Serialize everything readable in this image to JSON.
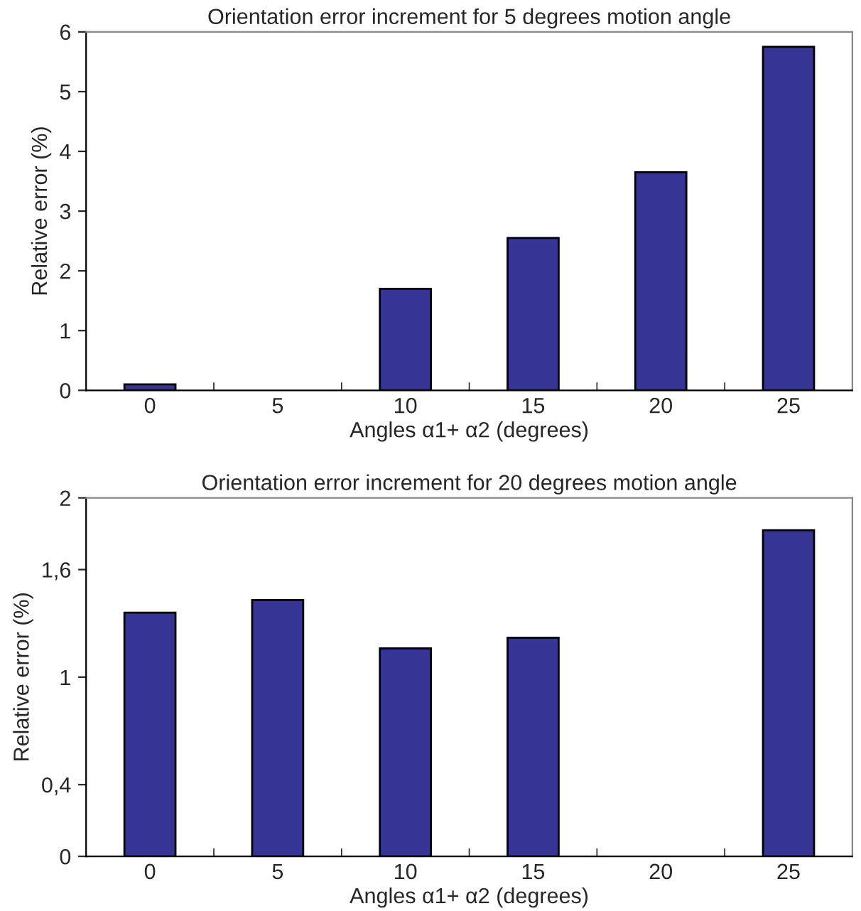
{
  "chart_data": [
    {
      "type": "bar",
      "title": "Orientation error increment for 5 degrees motion angle",
      "xlabel": "Angles α1+ α2 (degrees)",
      "ylabel": "Relative error (%)",
      "categories": [
        "0",
        "5",
        "10",
        "15",
        "20",
        "25"
      ],
      "values": [
        0.1,
        null,
        1.7,
        2.55,
        3.65,
        5.75
      ],
      "color": "#363596",
      "ylim": [
        0,
        6
      ],
      "yticks": [
        0,
        1,
        2,
        3,
        4,
        5,
        6
      ],
      "grid": false,
      "legend": false
    },
    {
      "type": "bar",
      "title": "Orientation error increment for 20 degrees motion angle",
      "xlabel": "Angles α1+ α2 (degrees)",
      "ylabel": "Relative error (%)",
      "categories": [
        "0",
        "5",
        "10",
        "15",
        "20",
        "25"
      ],
      "values": [
        1.36,
        1.43,
        1.16,
        1.22,
        null,
        1.82
      ],
      "color": "#363596",
      "ylim": [
        0,
        2
      ],
      "yticks": [
        0,
        {
          "value": 0.4,
          "label": "0,4"
        },
        1,
        {
          "value": 1.6,
          "label": "1,6"
        },
        2
      ],
      "grid": false,
      "legend": false
    }
  ]
}
